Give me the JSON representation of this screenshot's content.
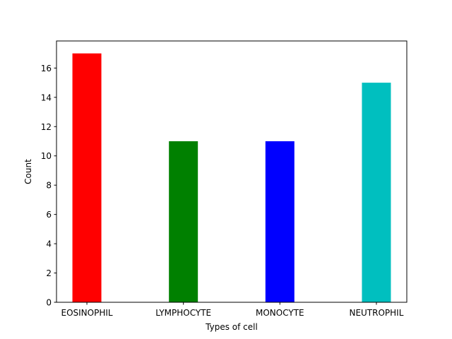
{
  "chart_data": {
    "type": "bar",
    "title": "",
    "xlabel": "Types of cell",
    "ylabel": "Count",
    "categories": [
      "EOSINOPHIL",
      "LYMPHOCYTE",
      "MONOCYTE",
      "NEUTROPHIL"
    ],
    "values": [
      17,
      11,
      11,
      15
    ],
    "colors": [
      "#ff0000",
      "#008000",
      "#0000ff",
      "#00bfbf"
    ],
    "yticks": [
      0,
      2,
      4,
      6,
      8,
      10,
      12,
      14,
      16
    ],
    "ylim": [
      0,
      17.85
    ],
    "grid": false,
    "legend": "none"
  }
}
